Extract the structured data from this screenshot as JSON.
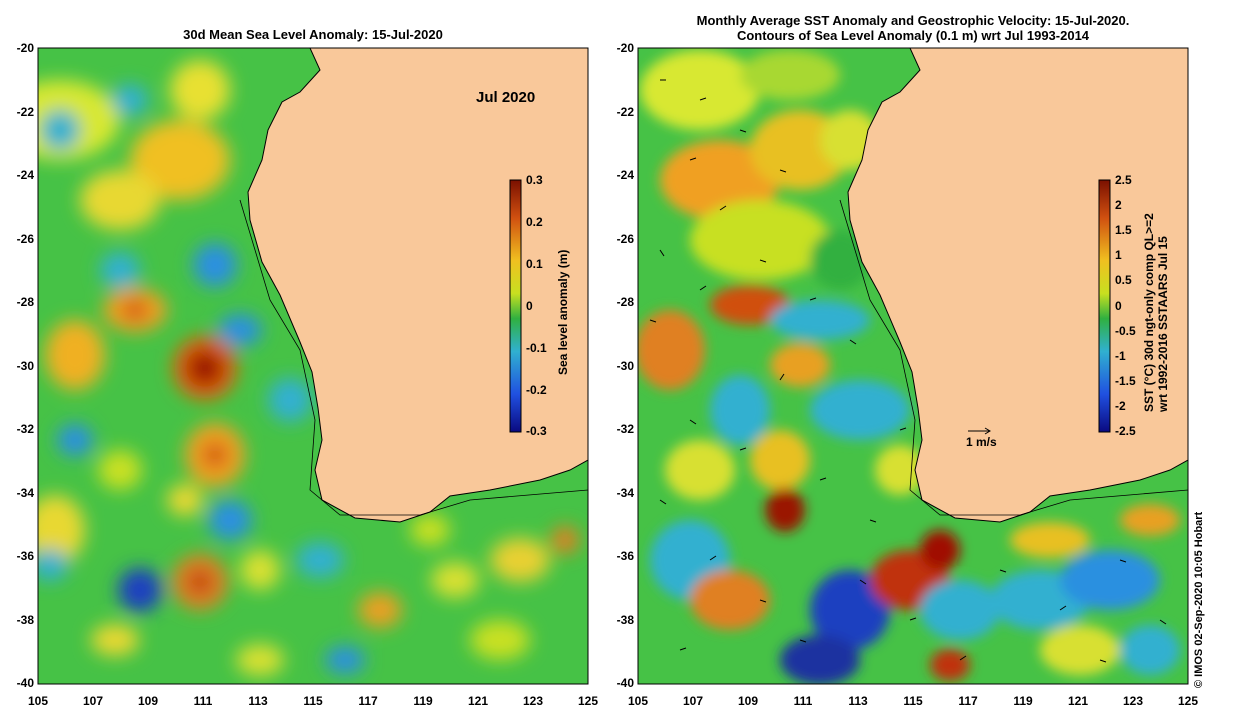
{
  "left_panel": {
    "title": "30d Mean Sea Level Anomaly: 15-Jul-2020",
    "month_label": "Jul 2020",
    "colorbar": {
      "label": "Sea level anomaly (m)",
      "ticks": [
        "0.3",
        "0.2",
        "0.1",
        "0",
        "-0.1",
        "-0.2",
        "-0.3"
      ],
      "range": [
        -0.3,
        0.3
      ]
    }
  },
  "right_panel": {
    "title_line1": "Monthly Average SST Anomaly  and Geostrophic Velocity: 15-Jul-2020.",
    "title_line2": "Contours of Sea Level Anomaly (0.1 m) wrt Jul 1993-2014",
    "velocity_scale_label": "1 m/s",
    "colorbar": {
      "label_line1": "SST (°C) 30d ngt-only comp QL>=2",
      "label_line2": "wrt 1992-2016 SSTAARS Jul 15",
      "ticks": [
        "2.5",
        "2",
        "1.5",
        "1",
        "0.5",
        "0",
        "-0.5",
        "-1",
        "-1.5",
        "-2",
        "-2.5"
      ],
      "range": [
        -2.5,
        2.5
      ]
    }
  },
  "axes": {
    "lat_ticks": [
      "-20",
      "-22",
      "-24",
      "-26",
      "-28",
      "-30",
      "-32",
      "-34",
      "-36",
      "-38",
      "-40"
    ],
    "lon_ticks": [
      "105",
      "107",
      "109",
      "111",
      "113",
      "115",
      "117",
      "119",
      "121",
      "123",
      "125"
    ],
    "lat_range": [
      -40,
      -20
    ],
    "lon_range": [
      105,
      125
    ]
  },
  "credit": "© IMOS 02-Sep-2020 10:05 Hobart",
  "colors": {
    "land": "#f9c89a",
    "ocean_base": "#46c246",
    "warm": "#e07a1e",
    "hot": "#b41e00",
    "cool": "#3aa0d8",
    "cold": "#1030a8"
  }
}
